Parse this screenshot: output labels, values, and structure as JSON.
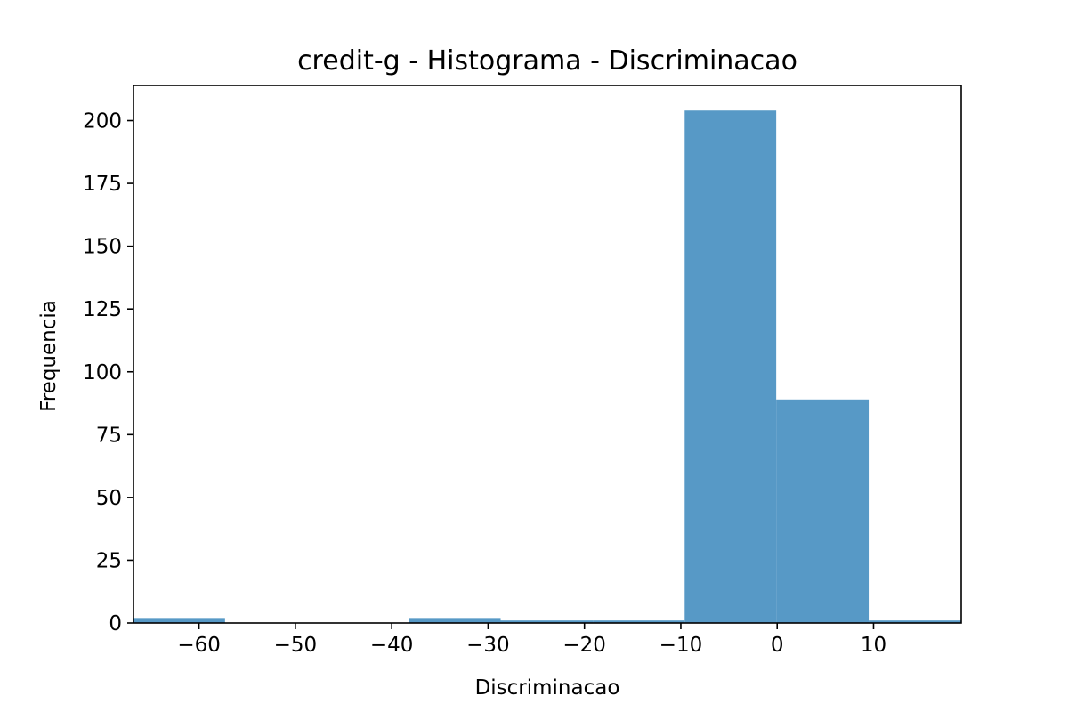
{
  "chart_data": {
    "type": "bar",
    "subtype": "histogram",
    "title": "credit-g - Histograma - Discriminacao",
    "xlabel": "Discriminacao",
    "ylabel": "Frequencia",
    "xlim": [
      -66.8,
      19.1
    ],
    "ylim": [
      0,
      214
    ],
    "xticks": [
      -60,
      -50,
      -40,
      -30,
      -20,
      -10,
      0,
      10
    ],
    "xtick_labels": [
      "−60",
      "−50",
      "−40",
      "−30",
      "−20",
      "−10",
      "0",
      "10"
    ],
    "yticks": [
      0,
      25,
      50,
      75,
      100,
      125,
      150,
      175,
      200
    ],
    "ytick_labels": [
      "0",
      "25",
      "50",
      "75",
      "100",
      "125",
      "150",
      "175",
      "200"
    ],
    "bins": [
      {
        "x0": -66.8,
        "x1": -57.3,
        "count": 2
      },
      {
        "x0": -57.3,
        "x1": -47.8,
        "count": 0
      },
      {
        "x0": -47.8,
        "x1": -38.2,
        "count": 0
      },
      {
        "x0": -38.2,
        "x1": -28.7,
        "count": 2
      },
      {
        "x0": -28.7,
        "x1": -19.1,
        "count": 1
      },
      {
        "x0": -19.1,
        "x1": -9.6,
        "count": 1
      },
      {
        "x0": -9.6,
        "x1": -0.1,
        "count": 204
      },
      {
        "x0": -0.1,
        "x1": 9.5,
        "count": 89
      },
      {
        "x0": 9.5,
        "x1": 19.1,
        "count": 1
      }
    ],
    "bar_color": "#5799c6",
    "grid": false,
    "legend": "none"
  }
}
